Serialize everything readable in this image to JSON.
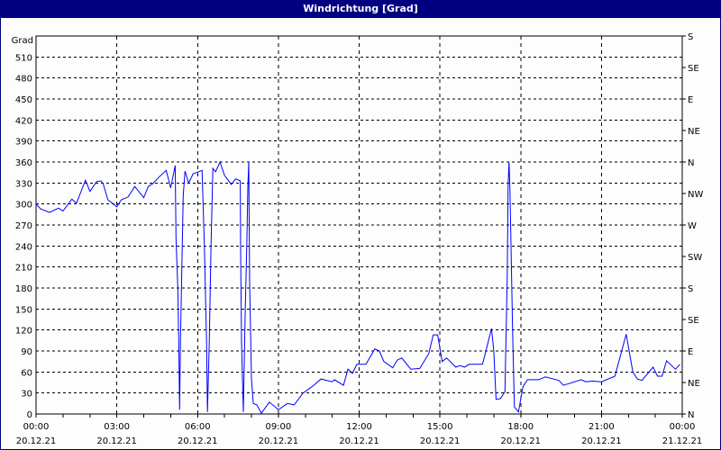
{
  "title": "Windrichtung [Grad]",
  "colors": {
    "titlebar": "#000080",
    "line": "#0000ff",
    "grid": "#000000"
  },
  "chart_data": {
    "type": "line",
    "title": "Windrichtung [Grad]",
    "ylabel": "Grad",
    "ylim": [
      0,
      540
    ],
    "yticks": [
      0,
      30,
      60,
      90,
      120,
      150,
      180,
      210,
      240,
      270,
      300,
      330,
      360,
      390,
      420,
      450,
      480,
      510
    ],
    "right_axis_labels": [
      "N",
      "NE",
      "E",
      "SE",
      "S",
      "SW",
      "W",
      "NW",
      "N",
      "NE",
      "E",
      "SE",
      "S"
    ],
    "right_axis_top_label": "S",
    "xlim": [
      "20.12.21 00:00",
      "21.12.21 00:00"
    ],
    "xticks": [
      {
        "time": "00:00",
        "date": "20.12.21"
      },
      {
        "time": "03:00",
        "date": "20.12.21"
      },
      {
        "time": "06:00",
        "date": "20.12.21"
      },
      {
        "time": "09:00",
        "date": "20.12.21"
      },
      {
        "time": "12:00",
        "date": "20.12.21"
      },
      {
        "time": "15:00",
        "date": "20.12.21"
      },
      {
        "time": "18:00",
        "date": "20.12.21"
      },
      {
        "time": "21:00",
        "date": "20.12.21"
      },
      {
        "time": "00:00",
        "date": "21.12.21"
      }
    ],
    "grid": true,
    "series": [
      {
        "points": [
          [
            "00:00",
            300
          ],
          [
            "00:10",
            293
          ],
          [
            "00:30",
            288
          ],
          [
            "00:50",
            294
          ],
          [
            "01:00",
            290
          ],
          [
            "01:20",
            307
          ],
          [
            "01:30",
            301
          ],
          [
            "01:50",
            334
          ],
          [
            "02:00",
            318
          ],
          [
            "02:15",
            332
          ],
          [
            "02:25",
            333
          ],
          [
            "02:30",
            328
          ],
          [
            "02:40",
            306
          ],
          [
            "03:00",
            296
          ],
          [
            "03:10",
            306
          ],
          [
            "03:25",
            310
          ],
          [
            "03:40",
            325
          ],
          [
            "04:00",
            309
          ],
          [
            "04:10",
            325
          ],
          [
            "04:20",
            329
          ],
          [
            "04:35",
            339
          ],
          [
            "04:50",
            348
          ],
          [
            "05:00",
            323
          ],
          [
            "05:10",
            355
          ],
          [
            "05:12",
            251
          ],
          [
            "05:16",
            180
          ],
          [
            "05:18",
            109
          ],
          [
            "05:20",
            6
          ],
          [
            "05:22",
            109
          ],
          [
            "05:26",
            245
          ],
          [
            "05:28",
            312
          ],
          [
            "05:32",
            347
          ],
          [
            "05:40",
            330
          ],
          [
            "05:50",
            343
          ],
          [
            "06:10",
            348
          ],
          [
            "06:15",
            244
          ],
          [
            "06:20",
            103
          ],
          [
            "06:22",
            3
          ],
          [
            "06:26",
            103
          ],
          [
            "06:30",
            244
          ],
          [
            "06:34",
            351
          ],
          [
            "06:40",
            346
          ],
          [
            "06:50",
            360
          ],
          [
            "07:00",
            341
          ],
          [
            "07:15",
            328
          ],
          [
            "07:25",
            336
          ],
          [
            "07:35",
            333
          ],
          [
            "07:36",
            234
          ],
          [
            "07:38",
            103
          ],
          [
            "07:42",
            3
          ],
          [
            "07:46",
            141
          ],
          [
            "07:50",
            251
          ],
          [
            "07:52",
            324
          ],
          [
            "07:54",
            360
          ],
          [
            "07:56",
            186
          ],
          [
            "08:00",
            51
          ],
          [
            "08:04",
            15
          ],
          [
            "08:12",
            13
          ],
          [
            "08:22",
            1
          ],
          [
            "08:40",
            17
          ],
          [
            "09:00",
            6
          ],
          [
            "09:20",
            15
          ],
          [
            "09:35",
            13
          ],
          [
            "09:55",
            30
          ],
          [
            "10:15",
            39
          ],
          [
            "10:35",
            50
          ],
          [
            "11:00",
            46
          ],
          [
            "11:05",
            49
          ],
          [
            "11:25",
            41
          ],
          [
            "11:35",
            64
          ],
          [
            "11:45",
            58
          ],
          [
            "11:55",
            71
          ],
          [
            "12:15",
            71
          ],
          [
            "12:35",
            93
          ],
          [
            "12:45",
            90
          ],
          [
            "12:55",
            75
          ],
          [
            "13:15",
            66
          ],
          [
            "13:25",
            77
          ],
          [
            "13:35",
            80
          ],
          [
            "13:55",
            64
          ],
          [
            "14:15",
            65
          ],
          [
            "14:35",
            86
          ],
          [
            "14:45",
            113
          ],
          [
            "14:55",
            113
          ],
          [
            "15:05",
            75
          ],
          [
            "15:15",
            80
          ],
          [
            "15:35",
            67
          ],
          [
            "15:45",
            69
          ],
          [
            "15:55",
            67
          ],
          [
            "16:05",
            71
          ],
          [
            "16:35",
            71
          ],
          [
            "16:55",
            122
          ],
          [
            "17:00",
            90
          ],
          [
            "17:05",
            21
          ],
          [
            "17:15",
            22
          ],
          [
            "17:25",
            32
          ],
          [
            "17:26",
            67
          ],
          [
            "17:30",
            193
          ],
          [
            "17:32",
            328
          ],
          [
            "17:34",
            360
          ],
          [
            "17:36",
            322
          ],
          [
            "17:38",
            255
          ],
          [
            "17:42",
            116
          ],
          [
            "17:46",
            10
          ],
          [
            "17:55",
            3
          ],
          [
            "18:05",
            39
          ],
          [
            "18:15",
            49
          ],
          [
            "18:40",
            49
          ],
          [
            "18:55",
            53
          ],
          [
            "19:25",
            48
          ],
          [
            "19:35",
            41
          ],
          [
            "19:50",
            44
          ],
          [
            "20:15",
            49
          ],
          [
            "20:25",
            46
          ],
          [
            "20:40",
            47
          ],
          [
            "21:00",
            46
          ],
          [
            "21:30",
            54
          ],
          [
            "21:55",
            114
          ],
          [
            "22:10",
            60
          ],
          [
            "22:20",
            50
          ],
          [
            "22:30",
            48
          ],
          [
            "22:55",
            67
          ],
          [
            "23:05",
            54
          ],
          [
            "23:15",
            54
          ],
          [
            "23:25",
            76
          ],
          [
            "23:45",
            64
          ],
          [
            "23:55",
            71
          ]
        ]
      }
    ]
  }
}
